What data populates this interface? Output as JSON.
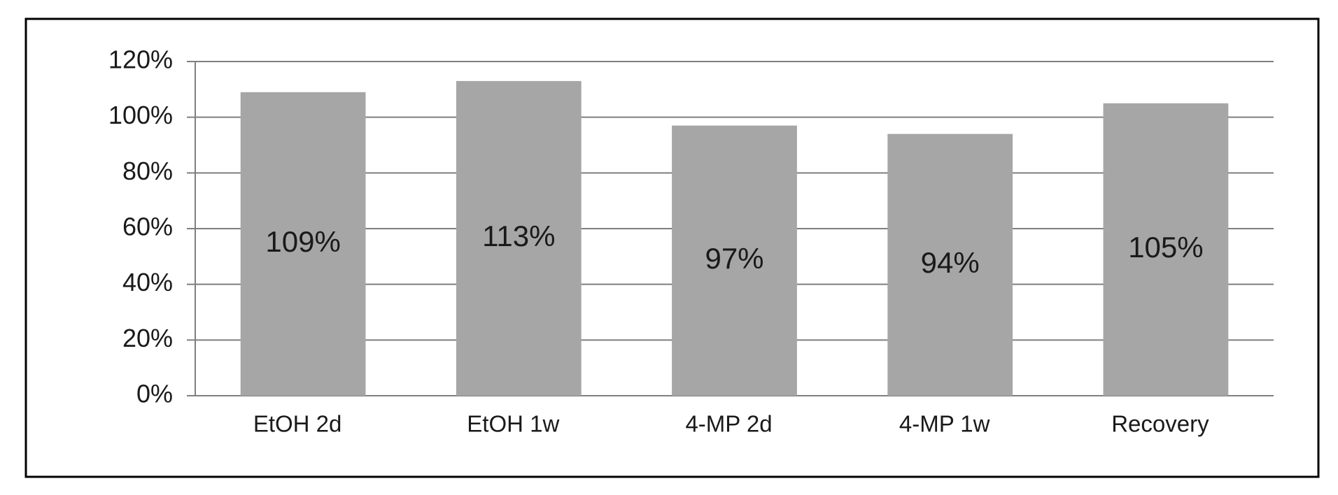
{
  "chart_data": {
    "type": "bar",
    "categories": [
      "EtOH 2d",
      "EtOH 1w",
      "4-MP 2d",
      "4-MP 1w",
      "Recovery"
    ],
    "values": [
      109,
      113,
      97,
      94,
      105
    ],
    "value_labels": [
      "109%",
      "113%",
      "97%",
      "94%",
      "105%"
    ],
    "color": "#a6a6a6",
    "ylim": [
      0,
      120
    ],
    "yticks": [
      {
        "value": 0,
        "label": "0%"
      },
      {
        "value": 20,
        "label": "20%"
      },
      {
        "value": 40,
        "label": "40%"
      },
      {
        "value": 60,
        "label": "60%"
      },
      {
        "value": 80,
        "label": "80%"
      },
      {
        "value": 100,
        "label": "100%"
      },
      {
        "value": 120,
        "label": "120%"
      }
    ],
    "grid": true
  }
}
